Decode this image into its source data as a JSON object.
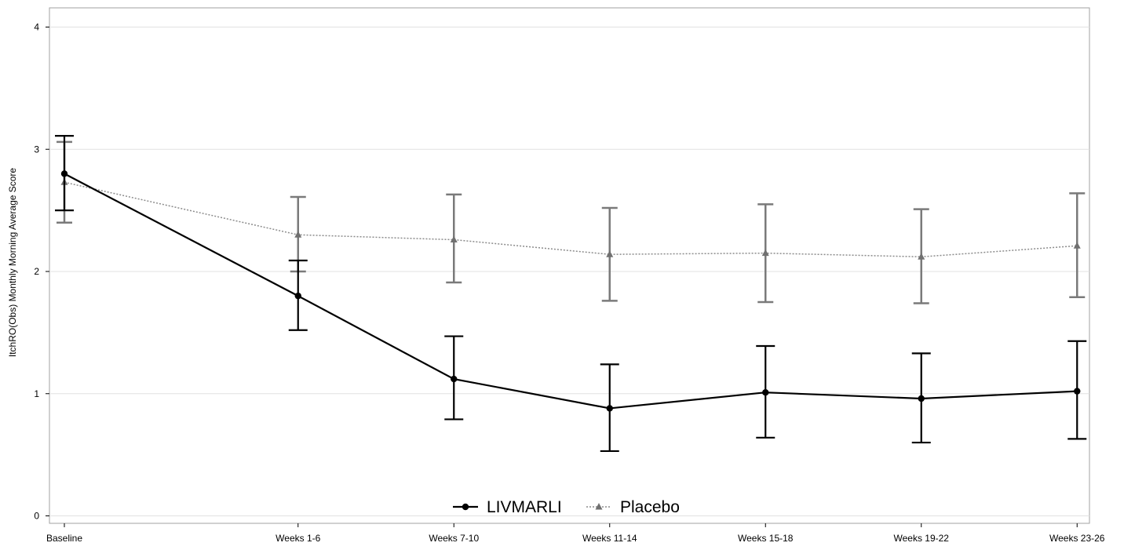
{
  "chart_data": {
    "type": "line",
    "title": "",
    "xlabel": "",
    "ylabel": "ItchRO(Obs) Monthly Morning Average Score",
    "categories": [
      "Baseline",
      "Weeks 1-6",
      "Weeks 7-10",
      "Weeks 11-14",
      "Weeks 15-18",
      "Weeks 19-22",
      "Weeks 23-26"
    ],
    "x_positions": [
      0,
      1.5,
      2.5,
      3.5,
      4.5,
      5.5,
      6.5
    ],
    "ylim": [
      0,
      4
    ],
    "yticks": [
      "0",
      "1",
      "2",
      "3",
      "4"
    ],
    "grid": "horizontal",
    "legend_position": "bottom-center",
    "series": [
      {
        "name": "LIVMARLI",
        "color": "#000000",
        "marker": "circle",
        "line_style": "solid",
        "values": [
          2.8,
          1.8,
          1.12,
          0.88,
          1.01,
          0.96,
          1.02
        ],
        "error_lower": [
          2.5,
          1.52,
          0.79,
          0.53,
          0.64,
          0.6,
          0.63
        ],
        "error_upper": [
          3.11,
          2.09,
          1.47,
          1.24,
          1.39,
          1.33,
          1.43
        ]
      },
      {
        "name": "Placebo",
        "color": "#808080",
        "marker": "triangle",
        "line_style": "dotted",
        "values": [
          2.73,
          2.3,
          2.26,
          2.14,
          2.15,
          2.12,
          2.21
        ],
        "error_lower": [
          2.4,
          2.0,
          1.91,
          1.76,
          1.75,
          1.74,
          1.79
        ],
        "error_upper": [
          3.06,
          2.61,
          2.63,
          2.52,
          2.55,
          2.51,
          2.64
        ]
      }
    ]
  }
}
